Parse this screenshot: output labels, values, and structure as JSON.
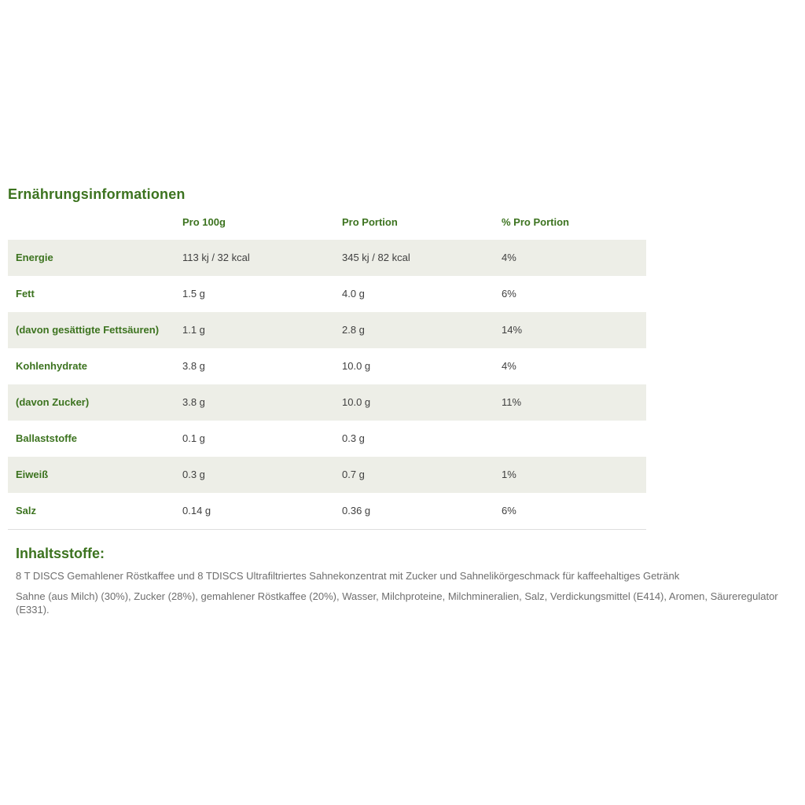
{
  "colors": {
    "accent_green": "#3c731f",
    "row_background": "#edeee7",
    "value_text": "#3f3f3f",
    "paragraph_text": "#6e6e6e"
  },
  "nutrition": {
    "title": "Ernährungsinformationen",
    "columns": [
      "Pro 100g",
      "Pro Portion",
      "% Pro Portion"
    ],
    "rows": [
      {
        "label": "Energie",
        "per100g": "113 kj / 32 kcal",
        "perPortion": "345 kj / 82 kcal",
        "pctPortion": "4%"
      },
      {
        "label": "Fett",
        "per100g": "1.5 g",
        "perPortion": "4.0 g",
        "pctPortion": "6%"
      },
      {
        "label": "(davon gesättigte Fettsäuren)",
        "per100g": "1.1 g",
        "perPortion": "2.8 g",
        "pctPortion": "14%"
      },
      {
        "label": "Kohlenhydrate",
        "per100g": "3.8 g",
        "perPortion": "10.0 g",
        "pctPortion": "4%"
      },
      {
        "label": "(davon Zucker)",
        "per100g": "3.8 g",
        "perPortion": "10.0 g",
        "pctPortion": "11%"
      },
      {
        "label": "Ballaststoffe",
        "per100g": "0.1 g",
        "perPortion": "0.3 g",
        "pctPortion": ""
      },
      {
        "label": "Eiweiß",
        "per100g": "0.3 g",
        "perPortion": "0.7 g",
        "pctPortion": "1%"
      },
      {
        "label": "Salz",
        "per100g": "0.14 g",
        "perPortion": "0.36 g",
        "pctPortion": "6%"
      }
    ]
  },
  "ingredients": {
    "title": "Inhaltsstoffe:",
    "description": "8 T DISCS Gemahlener Röstkaffee und 8 TDISCS Ultrafiltriertes Sahnekonzentrat mit Zucker und Sahnelikörgeschmack für kaffeehaltiges Getränk",
    "list": "Sahne (aus Milch) (30%), Zucker (28%), gemahlener Röstkaffee (20%), Wasser, Milchproteine, Milchmineralien, Salz, Verdickungsmittel (E414), Aromen, Säureregulator (E331)."
  }
}
